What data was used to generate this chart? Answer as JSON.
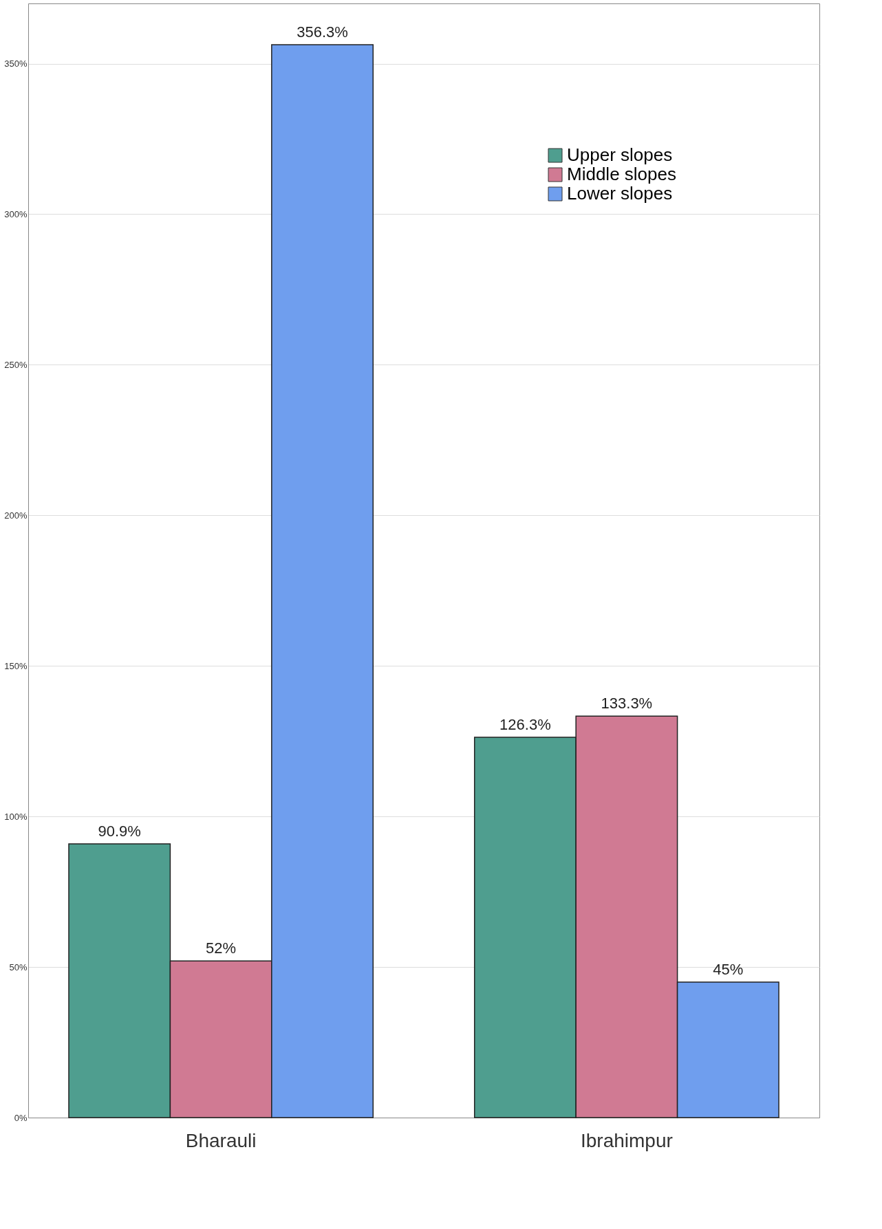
{
  "chart_data": {
    "type": "bar",
    "categories": [
      "Bharauli",
      "Ibrahimpur"
    ],
    "series": [
      {
        "name": "Upper slopes",
        "color": "#4f9e8f",
        "values": [
          90.9,
          126.3
        ],
        "value_labels": [
          "90.9%",
          "126.3%"
        ]
      },
      {
        "name": "Middle slopes",
        "color": "#d07a93",
        "values": [
          52,
          133.3
        ],
        "value_labels": [
          "52%",
          "133.3%"
        ]
      },
      {
        "name": "Lower slopes",
        "color": "#6f9eee",
        "values": [
          356.3,
          45
        ],
        "value_labels": [
          "356.3%",
          "45%"
        ]
      }
    ],
    "ylim": [
      0,
      370
    ],
    "yticks": [
      {
        "value": 0,
        "label": "0%"
      },
      {
        "value": 50,
        "label": "50%"
      },
      {
        "value": 100,
        "label": "100%"
      },
      {
        "value": 150,
        "label": "150%"
      },
      {
        "value": 200,
        "label": "200%"
      },
      {
        "value": 250,
        "label": "250%"
      },
      {
        "value": 300,
        "label": "300%"
      },
      {
        "value": 350,
        "label": "350%"
      }
    ],
    "grid": "y",
    "legend": "top right"
  }
}
